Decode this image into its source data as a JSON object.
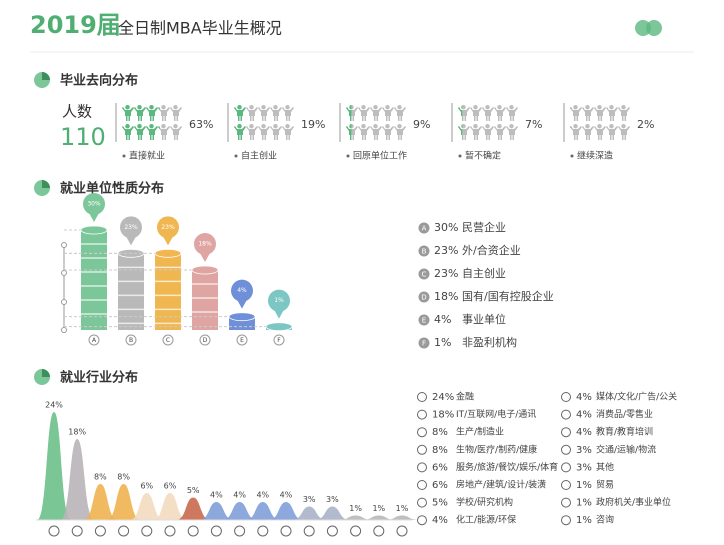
{
  "header": {
    "year": "2019届",
    "title": "全日制MBA毕业生概况"
  },
  "chart_data": [
    {
      "type": "pictogram",
      "title": "毕业去向分布",
      "total_label": "人数",
      "total": 110,
      "categories": [
        "直接就业",
        "自主创业",
        "回原单位工作",
        "暂不确定",
        "继续深造"
      ],
      "values": [
        63,
        19,
        9,
        7,
        2
      ],
      "value_labels": [
        "63%",
        "19%",
        "9%",
        "7%",
        "2%"
      ],
      "color": "#5bb87f",
      "base_color": "#bdbdbd"
    },
    {
      "type": "bar",
      "title": "就业单位性质分布",
      "categories": [
        "A",
        "B",
        "C",
        "D",
        "E",
        "F"
      ],
      "labels": [
        "民营企业",
        "外/合资企业",
        "自主创业",
        "国有/国有控股企业",
        "事业单位",
        "非盈利机构"
      ],
      "values": [
        30,
        23,
        23,
        18,
        4,
        1
      ],
      "value_labels": [
        "30%",
        "23%",
        "23%",
        "18%",
        "4%",
        "1%"
      ],
      "colors": [
        "#7cc79a",
        "#b9b9b9",
        "#f0b650",
        "#dfa5a3",
        "#6f90d8",
        "#7cc7c3"
      ]
    },
    {
      "type": "peaks",
      "title": "就业行业分布",
      "categories": [
        "金融",
        "IT/互联网/电子/通讯",
        "生产/制造业",
        "生物/医疗/制药/健康",
        "服务/旅游/餐饮/娱乐/体育",
        "房地产/建筑/设计/装潢",
        "学校/研究机构",
        "化工/能源/环保",
        "媒体/文化/广告/公关",
        "消费品/零售业",
        "教育/教育培训",
        "交通/运输/物流",
        "其他",
        "贸易",
        "政府机关/事业单位",
        "咨询"
      ],
      "values": [
        24,
        18,
        8,
        8,
        6,
        6,
        5,
        4,
        4,
        4,
        4,
        3,
        3,
        1,
        1,
        1
      ],
      "value_labels": [
        "24%",
        "18%",
        "8%",
        "8%",
        "6%",
        "6%",
        "5%",
        "4%",
        "4%",
        "4%",
        "4%",
        "3%",
        "3%",
        "1%",
        "1%",
        "1%"
      ],
      "colors": [
        "#6cc08a",
        "#b9b4b8",
        "#f0b34f",
        "#f0b34f",
        "#f3dcc0",
        "#f3dcc0",
        "#c9694f",
        "#7f9ed8",
        "#7f9ed8",
        "#7f9ed8",
        "#7f9ed8",
        "#a8b4c8",
        "#a8b4c8",
        "#b8b8b8",
        "#b8b8b8",
        "#b8b8b8"
      ]
    }
  ]
}
